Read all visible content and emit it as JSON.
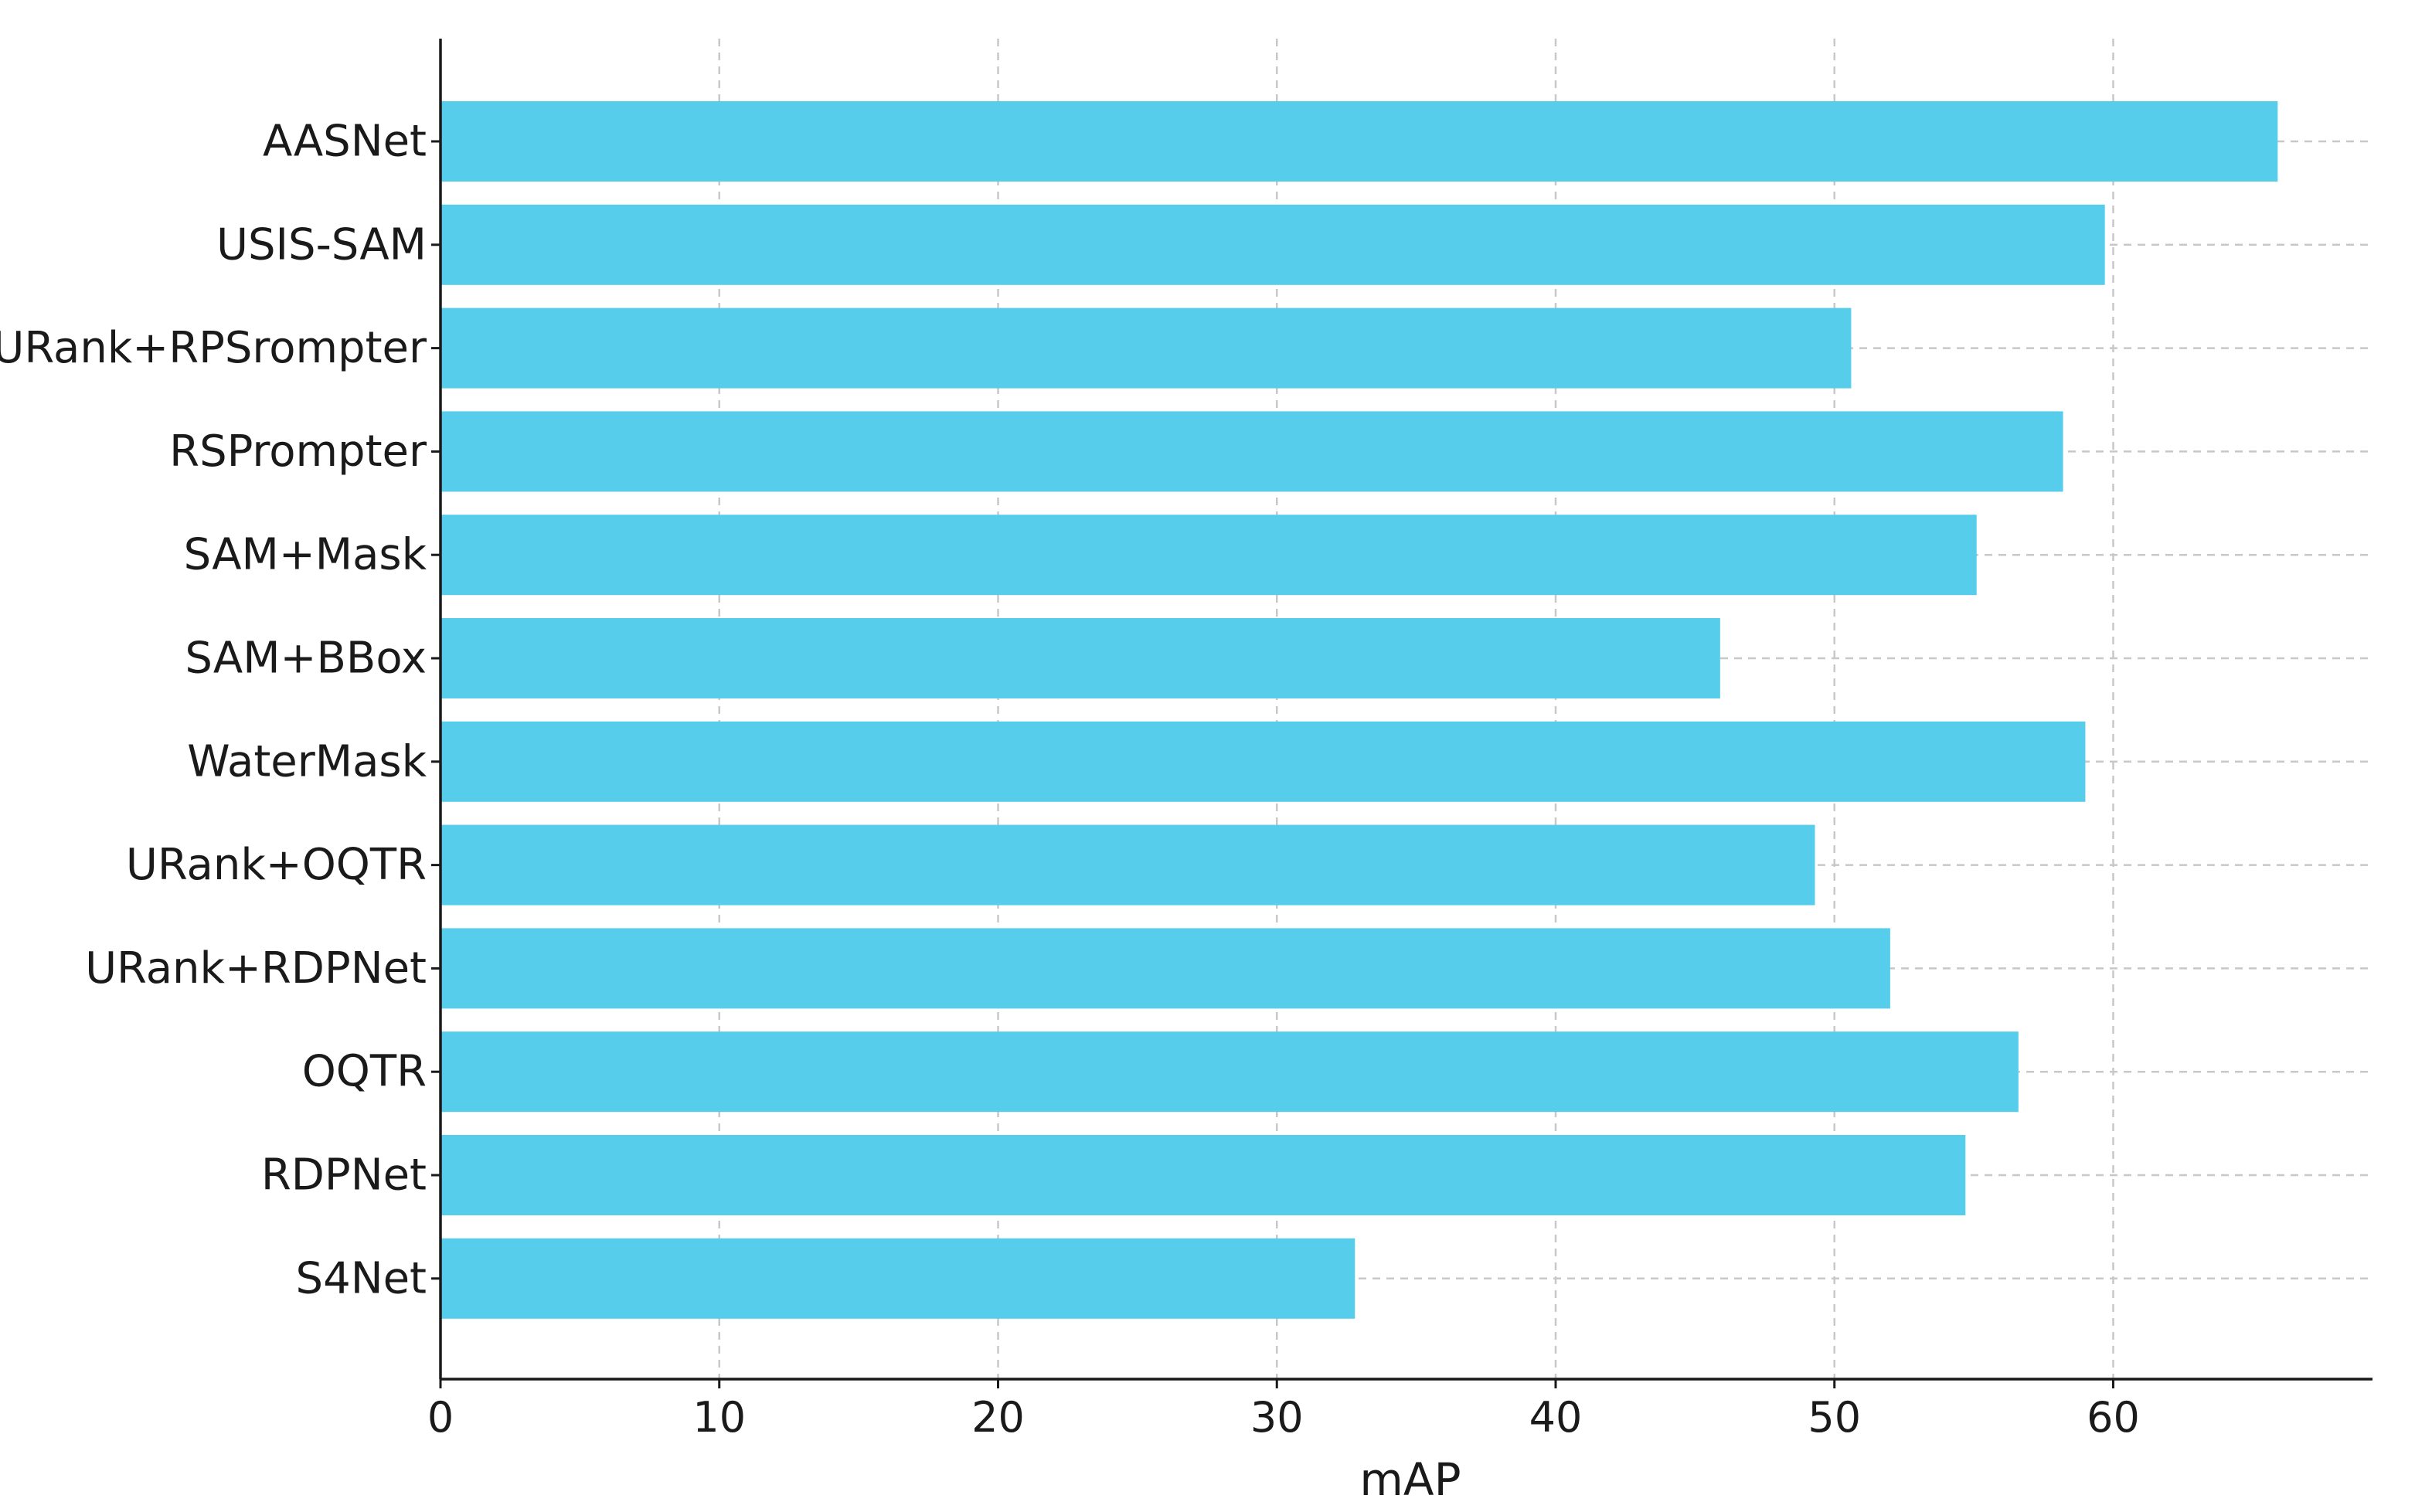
{
  "chart_data": {
    "type": "bar",
    "orientation": "horizontal",
    "categories": [
      "AASNet",
      "USIS-SAM",
      "URank+RPSrompter",
      "RSPrompter",
      "SAM+Mask",
      "SAM+BBox",
      "WaterMask",
      "URank+OQTR",
      "URank+RDPNet",
      "OQTR",
      "RDPNet",
      "S4Net"
    ],
    "values": [
      65.9,
      59.7,
      50.6,
      58.2,
      55.1,
      45.9,
      59.0,
      49.3,
      52.0,
      56.6,
      54.7,
      32.8
    ],
    "xlabel": "mAP",
    "ylabel": "",
    "title": "",
    "xlim": [
      0,
      69.3
    ],
    "xticks": [
      0,
      10,
      20,
      30,
      40,
      50,
      60
    ],
    "grid": true,
    "bar_color": "#56cdeb",
    "grid_color": "#c8c8c8",
    "axis_color": "#1a1a1a"
  }
}
